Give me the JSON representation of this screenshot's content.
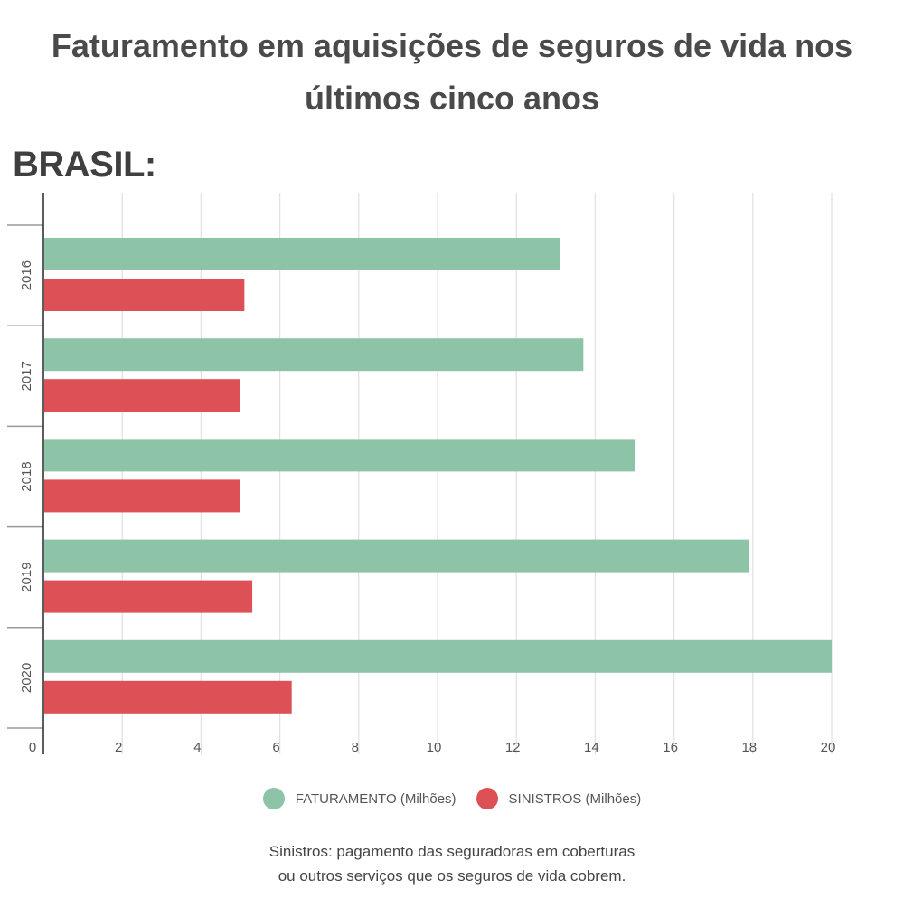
{
  "title_lines": [
    "Faturamento em aquisições de seguros de vida nos",
    "últimos cinco anos"
  ],
  "region_label": "BRASIL:",
  "chart_data": {
    "type": "bar",
    "orientation": "horizontal",
    "categories": [
      "2016",
      "2017",
      "2018",
      "2019",
      "2020"
    ],
    "series": [
      {
        "name": "FATURAMENTO (Milhões)",
        "color": "#8dc3a7",
        "values": [
          13.1,
          13.7,
          15.0,
          17.9,
          20.0
        ]
      },
      {
        "name": "SINISTROS (Milhões)",
        "color": "#dc5056",
        "values": [
          5.1,
          5.0,
          5.0,
          5.3,
          6.3
        ]
      }
    ],
    "xlim": [
      0,
      20
    ],
    "xticks": [
      0,
      2,
      4,
      6,
      8,
      10,
      12,
      14,
      16,
      18,
      20
    ],
    "grid": true,
    "legend_position": "bottom"
  },
  "note_lines": [
    "Sinistros: pagamento das seguradoras em coberturas",
    "ou outros serviços que os seguros de vida cobrem."
  ]
}
